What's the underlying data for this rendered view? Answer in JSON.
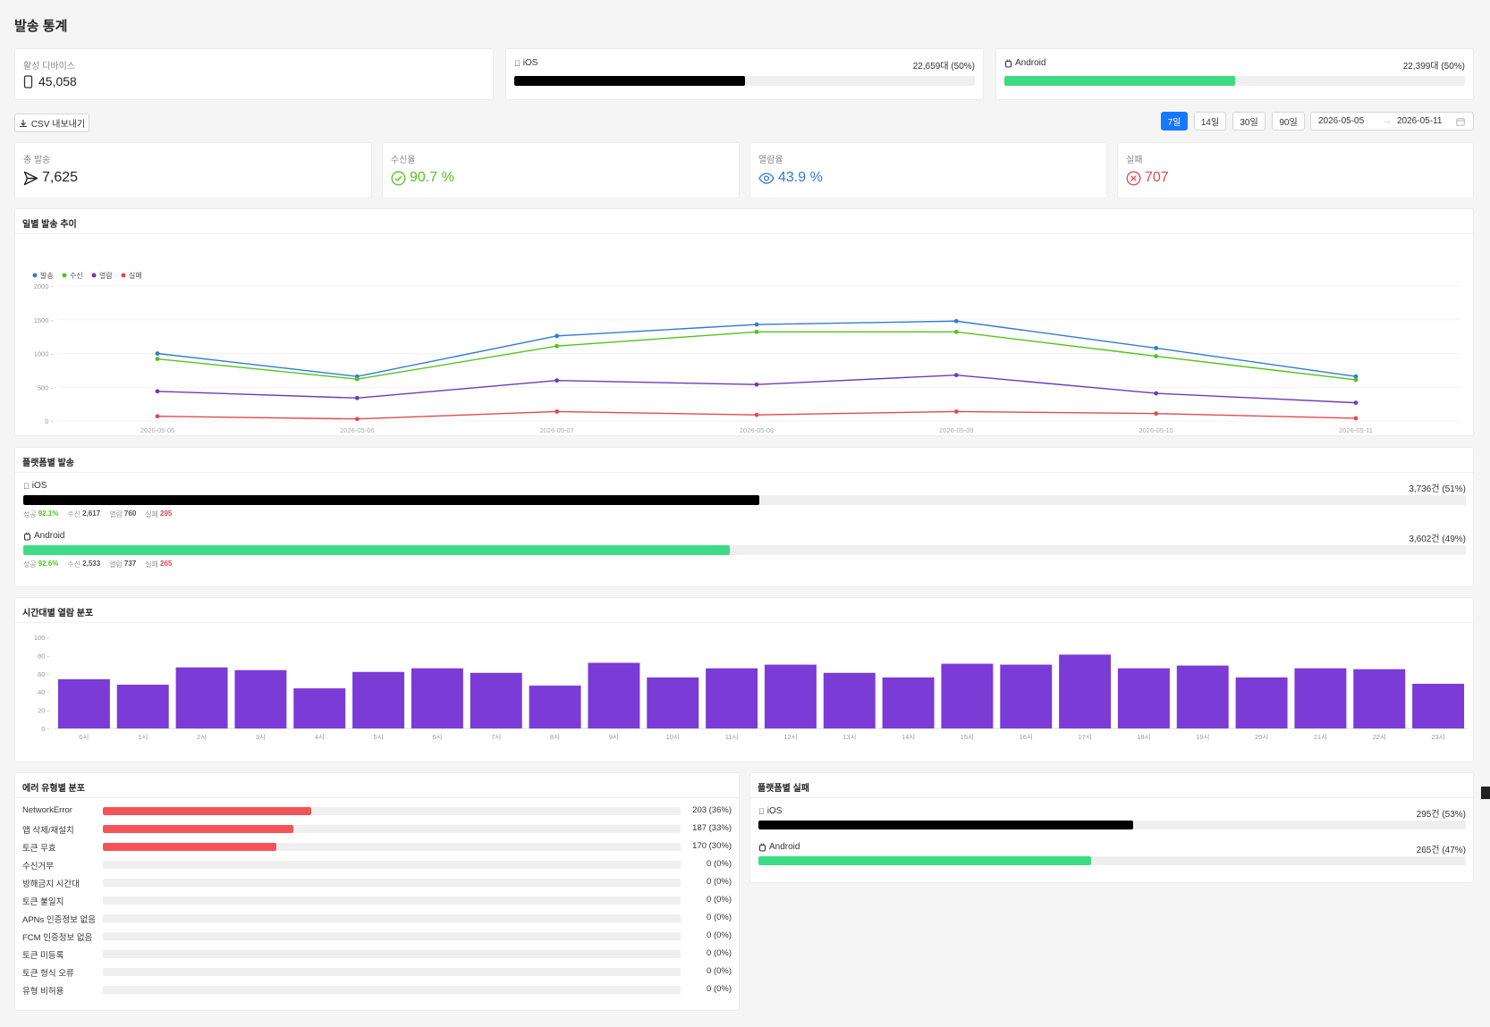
{
  "page": {
    "title": "발송 통계"
  },
  "devices": {
    "active_label": "활성 디바이스",
    "active_value": "45,058",
    "ios_label": "iOS",
    "ios_value": "22,659대 (50%)",
    "ios_ratio": 0.5,
    "android_label": "Android",
    "android_value": "22,399대 (50%)",
    "android_ratio": 0.5
  },
  "toolbar": {
    "csv_label": "CSV 내보내기",
    "ranges": [
      "7일",
      "14일",
      "30일",
      "90일"
    ],
    "active_range": "7일",
    "date_from": "2026-05-05",
    "date_to": "2026-05-11"
  },
  "stats": {
    "total_label": "총 발송",
    "total_value": "7,625",
    "receive_label": "수신율",
    "receive_value": "90.7 %",
    "open_label": "열람율",
    "open_value": "43.9 %",
    "fail_label": "실패",
    "fail_value": "707"
  },
  "colors": {
    "send": "#2f7bd6",
    "receive": "#52c41a",
    "open": "#6b3bb8",
    "fail": "#e5484d",
    "ios_bar": "#000000",
    "android_bar": "#3ddc84",
    "hour_bar": "#7a3bd6",
    "error_bar": "#f5525a"
  },
  "daily": {
    "title": "일별 발송 추이",
    "chart_data": {
      "type": "line",
      "x": [
        "2026-05-05",
        "2026-05-06",
        "2026-05-07",
        "2026-05-08",
        "2026-05-09",
        "2026-05-10",
        "2026-05-11"
      ],
      "ylim": [
        0,
        2000
      ],
      "yticks": [
        0,
        500,
        1000,
        1500,
        2000
      ],
      "series": [
        {
          "name": "발송",
          "values": [
            1000,
            660,
            1260,
            1430,
            1480,
            1080,
            660
          ]
        },
        {
          "name": "수신",
          "values": [
            920,
            620,
            1110,
            1320,
            1320,
            960,
            610
          ]
        },
        {
          "name": "열람",
          "values": [
            440,
            340,
            600,
            540,
            680,
            410,
            270
          ]
        },
        {
          "name": "실패",
          "values": [
            70,
            30,
            140,
            90,
            140,
            110,
            40
          ]
        }
      ]
    }
  },
  "platform": {
    "title": "플랫폼별 발송",
    "ios": {
      "label": "iOS",
      "value": "3,736건 (51%)",
      "ratio": 0.51,
      "success_label": "성공",
      "success": "92.1%",
      "recv_label": "수신",
      "recv": "2,617",
      "open_label": "열람",
      "open": "760",
      "fail_label": "실패",
      "fail": "295"
    },
    "android": {
      "label": "Android",
      "value": "3,602건 (49%)",
      "ratio": 0.49,
      "success_label": "성공",
      "success": "92.6%",
      "recv_label": "수신",
      "recv": "2,533",
      "open_label": "열람",
      "open": "737",
      "fail_label": "실패",
      "fail": "265"
    }
  },
  "hourly": {
    "title": "시간대별 열람 분포",
    "chart_data": {
      "type": "bar",
      "categories": [
        "0시",
        "1시",
        "2시",
        "3시",
        "4시",
        "5시",
        "6시",
        "7시",
        "8시",
        "9시",
        "10시",
        "11시",
        "12시",
        "13시",
        "14시",
        "15시",
        "16시",
        "17시",
        "18시",
        "19시",
        "20시",
        "21시",
        "22시",
        "23시"
      ],
      "values": [
        54,
        48,
        67,
        64,
        44,
        62,
        66,
        61,
        47,
        72,
        56,
        66,
        70,
        61,
        56,
        71,
        70,
        81,
        66,
        69,
        56,
        66,
        65,
        49
      ],
      "ylim": [
        0,
        100
      ],
      "yticks": [
        0,
        20,
        40,
        60,
        80,
        100
      ]
    }
  },
  "errors": {
    "title": "에러 유형별 분포",
    "items": [
      {
        "label": "NetworkError",
        "value": "203 (36%)",
        "ratio": 0.36
      },
      {
        "label": "앱 삭제/재설치",
        "value": "187 (33%)",
        "ratio": 0.33
      },
      {
        "label": "토큰 무효",
        "value": "170 (30%)",
        "ratio": 0.3
      },
      {
        "label": "수신거부",
        "value": "0 (0%)",
        "ratio": 0
      },
      {
        "label": "방해금지 시간대",
        "value": "0 (0%)",
        "ratio": 0
      },
      {
        "label": "토큰 불일치",
        "value": "0 (0%)",
        "ratio": 0
      },
      {
        "label": "APNs 인증정보 없음",
        "value": "0 (0%)",
        "ratio": 0
      },
      {
        "label": "FCM 인증정보 없음",
        "value": "0 (0%)",
        "ratio": 0
      },
      {
        "label": "토큰 미등록",
        "value": "0 (0%)",
        "ratio": 0
      },
      {
        "label": "토큰 형식 오류",
        "value": "0 (0%)",
        "ratio": 0
      },
      {
        "label": "유형 비허용",
        "value": "0 (0%)",
        "ratio": 0
      }
    ]
  },
  "platform_fail": {
    "title": "플랫폼별 실패",
    "ios": {
      "label": "iOS",
      "value": "295건 (53%)",
      "ratio": 0.53
    },
    "android": {
      "label": "Android",
      "value": "265건 (47%)",
      "ratio": 0.47
    }
  }
}
